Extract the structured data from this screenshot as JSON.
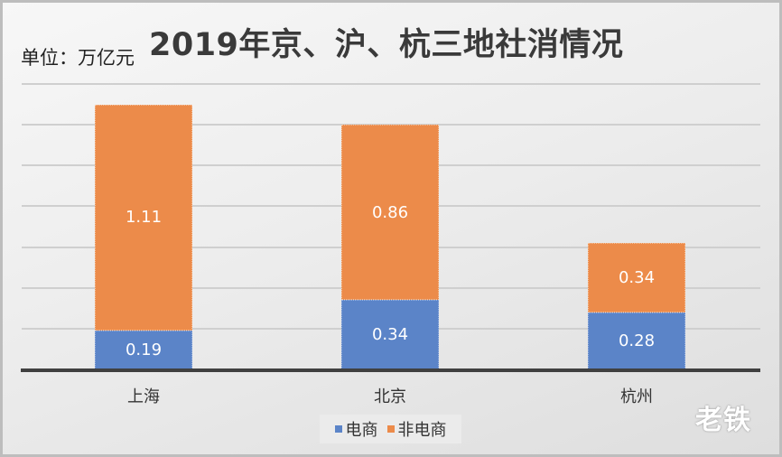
{
  "chart_data": {
    "type": "bar",
    "stacked": true,
    "title": "2019年京、沪、杭三地社消情况",
    "unit_label": "单位：万亿元",
    "xlabel": "",
    "ylabel": "万亿元",
    "ylim": [
      0,
      1.4
    ],
    "y_tick_step": 0.2,
    "grid": true,
    "y_axis_labels_visible": false,
    "legend_position": "bottom",
    "categories": [
      "上海",
      "北京",
      "杭州"
    ],
    "series": [
      {
        "name": "电商",
        "color": "#5b84c8",
        "values": [
          0.19,
          0.34,
          0.28
        ],
        "labels": [
          "0.19",
          "0.34",
          "0.28"
        ]
      },
      {
        "name": "非电商",
        "color": "#ec8b4a",
        "values": [
          1.11,
          0.86,
          0.34
        ],
        "labels": [
          "1.11",
          "0.86",
          "0.34"
        ]
      }
    ]
  },
  "watermark": "老铁"
}
